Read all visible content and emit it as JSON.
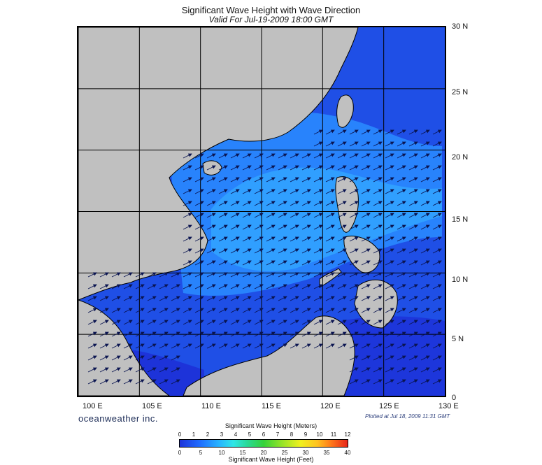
{
  "title": "Significant Wave Height with Wave Direction",
  "subtitle": "Valid For Jul-19-2009 18:00 GMT",
  "map": {
    "lon_range": [
      100,
      130
    ],
    "lat_range": [
      0,
      30
    ],
    "x_ticks": [
      "100 E",
      "105 E",
      "110 E",
      "115 E",
      "120 E",
      "125 E",
      "130 E"
    ],
    "y_ticks": [
      "30 N",
      "25 N",
      "20 N",
      "15 N",
      "10 N",
      "5 N",
      "0"
    ],
    "land_color": "#c0c0c0",
    "sea_colors": [
      "#1d33d9",
      "#1f4fe6",
      "#1f6dff",
      "#2a8cff",
      "#32a6ff"
    ],
    "arrow_direction": "southwest to northeast",
    "grid": true
  },
  "brand": "oceanweather inc.",
  "plotted": "Plotted at Jul 18, 2009 11:31 GMT",
  "colorbar": {
    "top_label": "Significant Wave Height (Meters)",
    "bottom_label": "Significant Wave Height (Feet)",
    "meters": [
      "0",
      "1",
      "2",
      "3",
      "4",
      "5",
      "6",
      "7",
      "8",
      "9",
      "10",
      "11",
      "12"
    ],
    "feet": [
      "0",
      "5",
      "10",
      "15",
      "20",
      "25",
      "30",
      "35",
      "40"
    ]
  }
}
